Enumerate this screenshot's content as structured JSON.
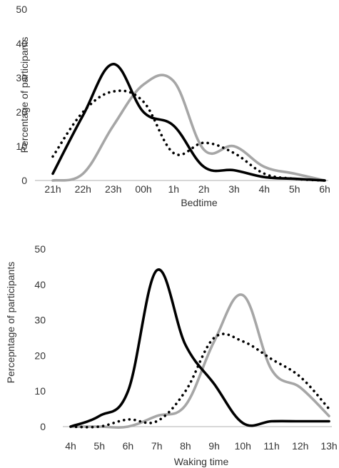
{
  "chart_data": [
    {
      "type": "line",
      "title": "",
      "xlabel": "Bedtime",
      "ylabel": "Percentage of participants",
      "categories": [
        "21h",
        "22h",
        "23h",
        "00h",
        "1h",
        "2h",
        "3h",
        "4h",
        "5h",
        "6h"
      ],
      "ylim": [
        0,
        50
      ],
      "yticks": [
        "0",
        "10",
        "20",
        "30",
        "40",
        "50"
      ],
      "grid": false,
      "series": [
        {
          "color": "#000000",
          "style": "solid",
          "points": [
            [
              21,
              2
            ],
            [
              22,
              19
            ],
            [
              23,
              34
            ],
            [
              24,
              20
            ],
            [
              25,
              16
            ],
            [
              26,
              4
            ],
            [
              27,
              3
            ],
            [
              28,
              1
            ],
            [
              29,
              0.5
            ],
            [
              30,
              0
            ]
          ]
        },
        {
          "color": "#a6a6a6",
          "style": "solid",
          "points": [
            [
              21,
              0
            ],
            [
              22,
              2
            ],
            [
              23,
              16
            ],
            [
              24,
              28
            ],
            [
              25,
              29
            ],
            [
              26,
              9
            ],
            [
              27,
              10
            ],
            [
              28,
              4
            ],
            [
              29,
              2
            ],
            [
              30,
              0
            ]
          ]
        },
        {
          "color": "#000000",
          "style": "dotted",
          "points": [
            [
              21,
              7
            ],
            [
              22,
              20
            ],
            [
              23,
              26
            ],
            [
              24,
              23
            ],
            [
              25,
              8
            ],
            [
              26,
              11
            ],
            [
              27,
              8
            ],
            [
              28,
              2
            ],
            [
              29,
              0.5
            ],
            [
              30,
              0
            ]
          ]
        }
      ]
    },
    {
      "type": "line",
      "title": "",
      "xlabel": "Waking time",
      "ylabel": "Percepntage of participants",
      "categories": [
        "4h",
        "5h",
        "6h",
        "7h",
        "8h",
        "9h",
        "10h",
        "11h",
        "12h",
        "13h"
      ],
      "ylim": [
        0,
        50
      ],
      "yticks": [
        "0",
        "10",
        "20",
        "30",
        "40",
        "50"
      ],
      "grid": false,
      "series": [
        {
          "color": "#000000",
          "style": "solid",
          "points": [
            [
              4,
              0
            ],
            [
              5,
              3
            ],
            [
              6,
              10
            ],
            [
              7,
              44
            ],
            [
              8,
              23
            ],
            [
              9,
              12
            ],
            [
              10,
              1
            ],
            [
              11,
              1.5
            ],
            [
              12,
              1.5
            ],
            [
              13,
              1.5
            ]
          ]
        },
        {
          "color": "#a6a6a6",
          "style": "solid",
          "points": [
            [
              4,
              0
            ],
            [
              5,
              0
            ],
            [
              6,
              0
            ],
            [
              7,
              3
            ],
            [
              8,
              6
            ],
            [
              9,
              24
            ],
            [
              10,
              37
            ],
            [
              11,
              16
            ],
            [
              12,
              11
            ],
            [
              13,
              3
            ]
          ]
        },
        {
          "color": "#000000",
          "style": "dotted",
          "points": [
            [
              4,
              0
            ],
            [
              5,
              0
            ],
            [
              6,
              2
            ],
            [
              7,
              1.5
            ],
            [
              8,
              10
            ],
            [
              9,
              25
            ],
            [
              10,
              24
            ],
            [
              11,
              19
            ],
            [
              12,
              14
            ],
            [
              13,
              5
            ]
          ]
        }
      ]
    }
  ]
}
